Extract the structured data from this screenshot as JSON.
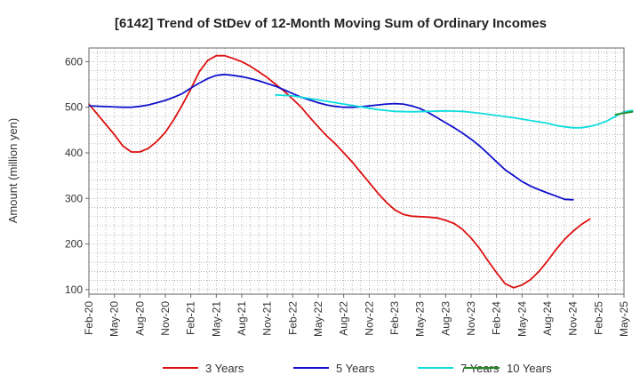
{
  "chart_data": {
    "type": "line",
    "title": "[6142]  Trend of StDev of 12-Month Moving Sum of Ordinary Incomes",
    "xlabel": "",
    "ylabel": "Amount (million yen)",
    "ylim": [
      90,
      630
    ],
    "yticks": [
      100,
      200,
      300,
      400,
      500,
      600
    ],
    "grid": true,
    "legend_position": "bottom",
    "x_ticks": [
      "Feb-20",
      "May-20",
      "Aug-20",
      "Nov-20",
      "Feb-21",
      "May-21",
      "Aug-21",
      "Nov-21",
      "Feb-22",
      "May-22",
      "Aug-22",
      "Nov-22",
      "Feb-23",
      "May-23",
      "Aug-23",
      "Nov-23",
      "Feb-24",
      "May-24",
      "Aug-24",
      "Nov-24",
      "Feb-25",
      "May-25"
    ],
    "x_months_start": "Feb-20",
    "series": [
      {
        "name": "3 Years",
        "color": "#dd1111",
        "points": [
          [
            0,
            507
          ],
          [
            3,
            440
          ],
          [
            4,
            415
          ],
          [
            5,
            402
          ],
          [
            6,
            402
          ],
          [
            7,
            410
          ],
          [
            8,
            425
          ],
          [
            9,
            445
          ],
          [
            10,
            473
          ],
          [
            11,
            505
          ],
          [
            12,
            540
          ],
          [
            13,
            578
          ],
          [
            14,
            603
          ],
          [
            15,
            613
          ],
          [
            16,
            613
          ],
          [
            17,
            607
          ],
          [
            18,
            600
          ],
          [
            19,
            590
          ],
          [
            20,
            578
          ],
          [
            21,
            565
          ],
          [
            22,
            550
          ],
          [
            23,
            535
          ],
          [
            24,
            518
          ],
          [
            25,
            500
          ],
          [
            26,
            478
          ],
          [
            27,
            457
          ],
          [
            28,
            437
          ],
          [
            29,
            420
          ],
          [
            30,
            400
          ],
          [
            31,
            380
          ],
          [
            32,
            357
          ],
          [
            33,
            335
          ],
          [
            34,
            312
          ],
          [
            35,
            292
          ],
          [
            36,
            275
          ],
          [
            37,
            265
          ],
          [
            38,
            261
          ],
          [
            39,
            260
          ],
          [
            40,
            259
          ],
          [
            41,
            257
          ],
          [
            42,
            252
          ],
          [
            43,
            245
          ],
          [
            44,
            232
          ],
          [
            45,
            213
          ],
          [
            46,
            190
          ],
          [
            47,
            163
          ],
          [
            48,
            137
          ],
          [
            49,
            113
          ],
          [
            50,
            104
          ],
          [
            51,
            110
          ],
          [
            52,
            122
          ],
          [
            53,
            140
          ],
          [
            54,
            163
          ],
          [
            55,
            188
          ],
          [
            56,
            210
          ],
          [
            57,
            228
          ],
          [
            58,
            243
          ],
          [
            59,
            255
          ]
        ]
      },
      {
        "name": "5 Years",
        "color": "#1111cc",
        "points": [
          [
            0,
            503
          ],
          [
            4,
            500
          ],
          [
            5,
            500
          ],
          [
            6,
            502
          ],
          [
            7,
            505
          ],
          [
            8,
            510
          ],
          [
            9,
            515
          ],
          [
            10,
            522
          ],
          [
            11,
            530
          ],
          [
            12,
            542
          ],
          [
            13,
            553
          ],
          [
            14,
            563
          ],
          [
            15,
            570
          ],
          [
            16,
            572
          ],
          [
            17,
            570
          ],
          [
            18,
            567
          ],
          [
            19,
            563
          ],
          [
            20,
            558
          ],
          [
            21,
            552
          ],
          [
            22,
            546
          ],
          [
            23,
            538
          ],
          [
            24,
            530
          ],
          [
            25,
            522
          ],
          [
            26,
            516
          ],
          [
            27,
            510
          ],
          [
            28,
            505
          ],
          [
            29,
            502
          ],
          [
            30,
            500
          ],
          [
            31,
            500
          ],
          [
            32,
            501
          ],
          [
            33,
            503
          ],
          [
            34,
            505
          ],
          [
            35,
            507
          ],
          [
            36,
            508
          ],
          [
            37,
            507
          ],
          [
            38,
            503
          ],
          [
            39,
            497
          ],
          [
            40,
            488
          ],
          [
            41,
            477
          ],
          [
            42,
            466
          ],
          [
            43,
            455
          ],
          [
            44,
            443
          ],
          [
            45,
            430
          ],
          [
            46,
            415
          ],
          [
            47,
            398
          ],
          [
            48,
            380
          ],
          [
            49,
            363
          ],
          [
            50,
            350
          ],
          [
            51,
            337
          ],
          [
            52,
            327
          ],
          [
            53,
            319
          ],
          [
            54,
            312
          ],
          [
            55,
            305
          ],
          [
            56,
            298
          ],
          [
            57,
            297
          ]
        ]
      },
      {
        "name": "7 Years",
        "color": "#11dddd",
        "points": [
          [
            22,
            527
          ],
          [
            24,
            525
          ],
          [
            26,
            519
          ],
          [
            28,
            513
          ],
          [
            30,
            507
          ],
          [
            32,
            501
          ],
          [
            34,
            495
          ],
          [
            36,
            491
          ],
          [
            38,
            490
          ],
          [
            40,
            491
          ],
          [
            42,
            492
          ],
          [
            44,
            491
          ],
          [
            46,
            487
          ],
          [
            48,
            482
          ],
          [
            50,
            477
          ],
          [
            52,
            471
          ],
          [
            54,
            465
          ],
          [
            55,
            460
          ],
          [
            56,
            457
          ],
          [
            57,
            455
          ],
          [
            58,
            455
          ],
          [
            59,
            458
          ],
          [
            60,
            463
          ],
          [
            61,
            470
          ],
          [
            62,
            480
          ],
          [
            63,
            490
          ],
          [
            64,
            493
          ]
        ]
      },
      {
        "name": "10 Years",
        "color": "#228b22",
        "points": [
          [
            62,
            484
          ],
          [
            63,
            487
          ],
          [
            64,
            490
          ]
        ]
      }
    ]
  }
}
